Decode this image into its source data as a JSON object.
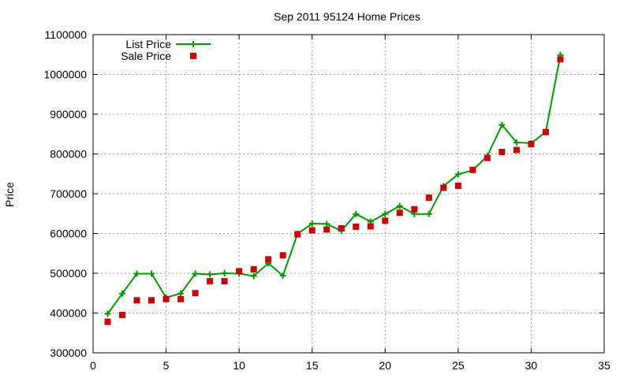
{
  "chart_data": {
    "type": "line",
    "title": "Sep 2011 95124 Home Prices",
    "xlabel": "",
    "ylabel": "Price",
    "xlim": [
      0,
      35
    ],
    "ylim": [
      300000,
      1100000
    ],
    "xticks": [
      "0",
      "5",
      "10",
      "15",
      "20",
      "25",
      "30",
      "35"
    ],
    "yticks": [
      "300000",
      "400000",
      "500000",
      "600000",
      "700000",
      "800000",
      "900000",
      "1000000",
      "1100000"
    ],
    "grid": true,
    "legend_position": "top-left",
    "series": [
      {
        "name": "List Price",
        "style": "line-with-plus-markers",
        "color": "#009900",
        "x": [
          1,
          2,
          3,
          4,
          5,
          6,
          7,
          8,
          9,
          10,
          11,
          12,
          13,
          14,
          15,
          16,
          17,
          18,
          19,
          20,
          21,
          22,
          23,
          24,
          25,
          26,
          27,
          28,
          29,
          30,
          31,
          32
        ],
        "y": [
          398000,
          449000,
          499000,
          499000,
          439000,
          449000,
          499000,
          497000,
          500000,
          499000,
          493000,
          525000,
          494000,
          599000,
          625000,
          624000,
          607000,
          649000,
          630000,
          649000,
          669000,
          649000,
          649000,
          719000,
          749000,
          759000,
          795000,
          873000,
          829000,
          827000,
          855000,
          1049000
        ]
      },
      {
        "name": "Sale Price",
        "style": "square-markers",
        "color": "#cc0000",
        "x": [
          1,
          2,
          3,
          4,
          5,
          6,
          7,
          8,
          9,
          10,
          11,
          12,
          13,
          14,
          15,
          16,
          17,
          18,
          19,
          20,
          21,
          22,
          23,
          24,
          25,
          26,
          27,
          28,
          29,
          30,
          31,
          32
        ],
        "y": [
          378000,
          395000,
          432000,
          432000,
          435000,
          435000,
          450000,
          480000,
          480000,
          505000,
          510000,
          535000,
          545000,
          598000,
          608000,
          610000,
          613000,
          617000,
          618000,
          632000,
          652000,
          661000,
          690000,
          715000,
          720000,
          760000,
          790000,
          805000,
          810000,
          825000,
          855000,
          1038000
        ]
      }
    ]
  }
}
